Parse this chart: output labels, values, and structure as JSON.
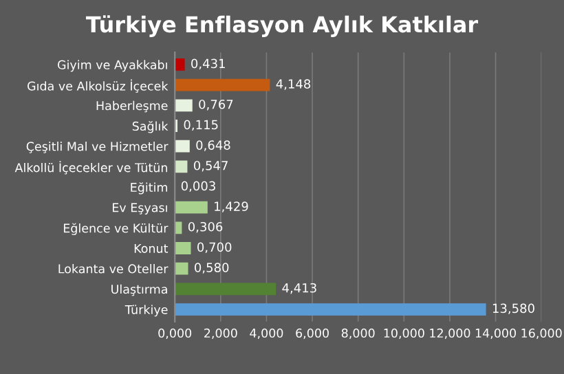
{
  "chart_data": {
    "type": "bar",
    "orientation": "horizontal",
    "title": "Türkiye Enflasyon Aylık Katkılar",
    "categories": [
      "Giyim ve Ayakkabı",
      "Gıda ve Alkolsüz İçecek",
      "Haberleşme",
      "Sağlık",
      "Çeşitli Mal ve Hizmetler",
      "Alkollü İçecekler ve Tütün",
      "Eğitim",
      "Ev Eşyası",
      "Eğlence ve Kültür",
      "Konut",
      "Lokanta ve Oteller",
      "Ulaştırma",
      "Türkiye"
    ],
    "values": [
      0.431,
      4.148,
      0.767,
      0.115,
      0.648,
      0.547,
      0.003,
      1.429,
      0.306,
      0.7,
      0.58,
      4.413,
      13.58
    ],
    "value_labels": [
      "0,431",
      "4,148",
      "0,767",
      "0,115",
      "0,648",
      "0,547",
      "0,003",
      "1,429",
      "0,306",
      "0,700",
      "0,580",
      "4,413",
      "13,580"
    ],
    "colors": [
      "#c00000",
      "#c55a11",
      "#e8f2e0",
      "#e8f2e0",
      "#e8f2e0",
      "#d5e8c8",
      "#d5e8c8",
      "#a9d18e",
      "#a9d18e",
      "#a9d18e",
      "#a9d18e",
      "#548235",
      "#5b9bd5"
    ],
    "xlim": [
      0,
      16
    ],
    "xticks": [
      {
        "value": 0,
        "label": "0,000"
      },
      {
        "value": 2,
        "label": "2,000"
      },
      {
        "value": 4,
        "label": "4,000"
      },
      {
        "value": 6,
        "label": "6,000"
      },
      {
        "value": 8,
        "label": "8,000"
      },
      {
        "value": 10,
        "label": "10,000"
      },
      {
        "value": 12,
        "label": "12,000"
      },
      {
        "value": 14,
        "label": "14,000"
      },
      {
        "value": 16,
        "label": "16,000"
      }
    ],
    "grid": "x",
    "legend": false
  }
}
